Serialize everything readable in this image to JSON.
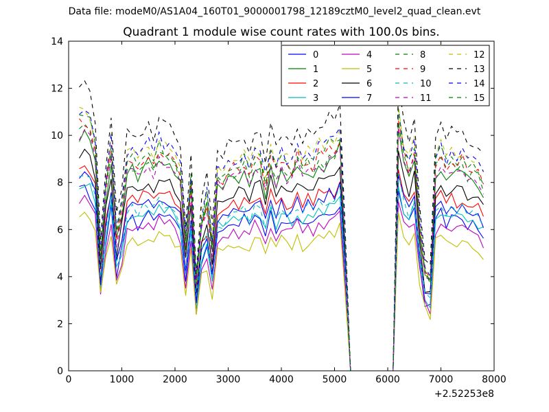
{
  "figure": {
    "suptitle": "Data file: modeM0/AS1A04_160T01_9000001798_12189cztM0_level2_quad_clean.evt"
  },
  "chart_data": {
    "type": "line",
    "title": "Quadrant 1 module wise count rates with 100.0s bins.",
    "xlabel": "",
    "ylabel": "",
    "x_offset_label": "+2.52253e8",
    "xlim": [
      0,
      8000
    ],
    "ylim": [
      0,
      14
    ],
    "xticks": [
      0,
      1000,
      2000,
      3000,
      4000,
      5000,
      6000,
      7000,
      8000
    ],
    "yticks": [
      0,
      2,
      4,
      6,
      8,
      10,
      12,
      14
    ],
    "grid": false,
    "legend_position": "top-right",
    "legend_columns": 4,
    "x": [
      200,
      300,
      400,
      500,
      600,
      700,
      800,
      900,
      1000,
      1100,
      1200,
      1300,
      1400,
      1500,
      1600,
      1700,
      1800,
      1900,
      2000,
      2100,
      2200,
      2300,
      2400,
      2500,
      2600,
      2700,
      2800,
      2900,
      3000,
      3100,
      3200,
      3300,
      3400,
      3500,
      3600,
      3700,
      3800,
      3900,
      4000,
      4100,
      4200,
      4300,
      4400,
      4500,
      4600,
      4700,
      4800,
      4900,
      5000,
      5100,
      5200,
      5300,
      5400,
      5500,
      5600,
      5700,
      5800,
      5900,
      6000,
      6100,
      6200,
      6300,
      6400,
      6500,
      6600,
      6700,
      6800,
      6900,
      7000,
      7100,
      7200,
      7300,
      7400,
      7500,
      7600,
      7700,
      7800
    ],
    "base_level": [
      9.5,
      9.7,
      9.4,
      8.6,
      4.5,
      7.0,
      8.6,
      5.2,
      6.3,
      8.0,
      8.1,
      7.8,
      8.2,
      8.4,
      8.0,
      8.6,
      8.3,
      8.2,
      8.0,
      7.5,
      5.0,
      7.3,
      3.5,
      5.8,
      6.6,
      4.8,
      7.5,
      7.4,
      7.7,
      7.8,
      7.8,
      8.0,
      7.6,
      8.2,
      8.1,
      7.2,
      8.3,
      7.6,
      8.1,
      7.8,
      7.7,
      8.3,
      7.8,
      8.1,
      7.9,
      8.4,
      8.2,
      8.6,
      8.5,
      9.0,
      5.0,
      0.0,
      0.0,
      0.0,
      0.0,
      0.0,
      0.0,
      0.0,
      0.0,
      0.0,
      9.8,
      8.4,
      7.8,
      8.6,
      5.6,
      3.7,
      3.5,
      8.0,
      8.3,
      7.8,
      8.1,
      7.9,
      8.2,
      7.7,
      7.8,
      7.6,
      7.2
    ],
    "series": [
      {
        "name": "0",
        "color": "#0000ff",
        "dash": "solid",
        "scale": 0.8
      },
      {
        "name": "1",
        "color": "#008000",
        "dash": "solid",
        "scale": 1.05
      },
      {
        "name": "2",
        "color": "#ff0000",
        "dash": "solid",
        "scale": 0.9
      },
      {
        "name": "3",
        "color": "#00bfbf",
        "dash": "solid",
        "scale": 0.82
      },
      {
        "name": "4",
        "color": "#bf00bf",
        "dash": "solid",
        "scale": 0.75
      },
      {
        "name": "5",
        "color": "#bfbf00",
        "dash": "solid",
        "scale": 0.68
      },
      {
        "name": "6",
        "color": "#000000",
        "dash": "solid",
        "scale": 0.97
      },
      {
        "name": "7",
        "color": "#0000ff",
        "dash": "solid",
        "scale": 0.87
      },
      {
        "name": "8",
        "color": "#008000",
        "dash": "dashed",
        "scale": 1.08
      },
      {
        "name": "9",
        "color": "#ff0000",
        "dash": "dashed",
        "scale": 1.1
      },
      {
        "name": "10",
        "color": "#00bfbf",
        "dash": "dashed",
        "scale": 0.85
      },
      {
        "name": "11",
        "color": "#bf00bf",
        "dash": "dashed",
        "scale": 1.05
      },
      {
        "name": "12",
        "color": "#bfbf00",
        "dash": "dashed",
        "scale": 1.15
      },
      {
        "name": "13",
        "color": "#000000",
        "dash": "dashed",
        "scale": 1.25
      },
      {
        "name": "14",
        "color": "#0000ff",
        "dash": "dashed",
        "scale": 1.15
      },
      {
        "name": "15",
        "color": "#008000",
        "dash": "dashed",
        "scale": 1.12
      }
    ]
  }
}
